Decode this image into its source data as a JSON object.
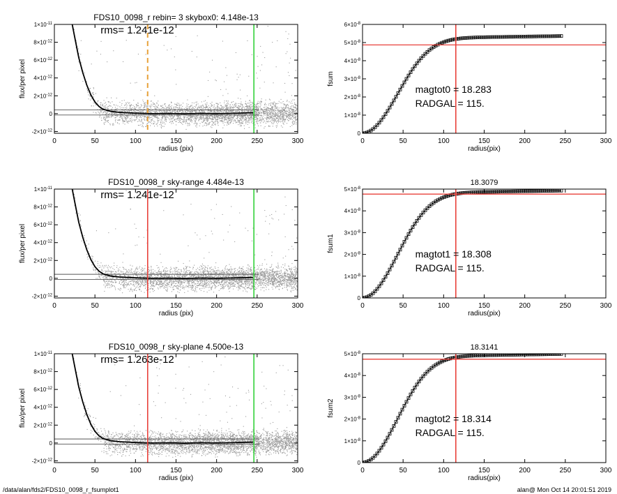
{
  "footer": {
    "left": "/data/alan/fds2/FDS10_0098_r_fsumplot1",
    "right": "alan@  Mon Oct 14 20:01:51 2019"
  },
  "colors": {
    "points": "#9a9a9a",
    "profile": "#000000",
    "red": "#e8403a",
    "green": "#34d13a",
    "orange": "#e8a23a",
    "hline": "#555555"
  },
  "chart_data": [
    {
      "type": "scatter",
      "panel": "profile-1",
      "title": "FDS10_0098_r rebin= 3    skybox0:  4.148e-13",
      "annotation": "rms= 1.241e-12",
      "xlabel": "radius (pix)",
      "ylabel": "flux/per pixel",
      "xlim": [
        0,
        300
      ],
      "ylim": [
        -2.2e-12,
        1e-11
      ],
      "xticks": [
        "0",
        "50",
        "100",
        "150",
        "200",
        "250",
        "300"
      ],
      "yticks": [
        {
          "mant": "-2×10",
          "exp": "-12"
        },
        {
          "mant": "0",
          "exp": ""
        },
        {
          "mant": "2×10",
          "exp": "-12"
        },
        {
          "mant": "4×10",
          "exp": "-12"
        },
        {
          "mant": "6×10",
          "exp": "-12"
        },
        {
          "mant": "8×10",
          "exp": "-12"
        },
        {
          "mant": "1×10",
          "exp": "-11"
        }
      ],
      "ytick_values": [
        -2e-12,
        0,
        2e-12,
        4e-12,
        6e-12,
        8e-12,
        1e-11
      ],
      "vlines": [
        {
          "x": 115,
          "style": "orange-dashed"
        },
        {
          "x": 246,
          "style": "green"
        }
      ],
      "hlines": [
        4.148e-13,
        -1.5e-13
      ],
      "profile": {
        "x": [
          22,
          25,
          30,
          35,
          40,
          45,
          50,
          55,
          60,
          70,
          80,
          90,
          100,
          120,
          140,
          160,
          180,
          200,
          220,
          245
        ],
        "y": [
          1e-11,
          8.6e-12,
          6.3e-12,
          4.6e-12,
          3.2e-12,
          2.1e-12,
          1.3e-12,
          8e-13,
          5e-13,
          2.5e-13,
          1.5e-13,
          1e-13,
          5e-14,
          0,
          2e-14,
          -2e-14,
          3e-14,
          0,
          4e-14,
          1e-13
        ]
      }
    },
    {
      "type": "line",
      "panel": "fsum-1",
      "title": "",
      "xlabel": "radius(pix)",
      "ylabel": "fsum",
      "xlim": [
        0,
        300
      ],
      "ylim": [
        0,
        6e-08
      ],
      "xticks": [
        "0",
        "50",
        "100",
        "150",
        "200",
        "250",
        "300"
      ],
      "yticks": [
        {
          "mant": "0",
          "exp": ""
        },
        {
          "mant": "1×10",
          "exp": "-8"
        },
        {
          "mant": "2×10",
          "exp": "-8"
        },
        {
          "mant": "3×10",
          "exp": "-8"
        },
        {
          "mant": "4×10",
          "exp": "-8"
        },
        {
          "mant": "5×10",
          "exp": "-8"
        },
        {
          "mant": "6×10",
          "exp": "-8"
        }
      ],
      "ytick_values": [
        0,
        1e-08,
        2e-08,
        3e-08,
        4e-08,
        5e-08,
        6e-08
      ],
      "vline_x": 115,
      "hline_y": 4.87e-08,
      "max_x": 245,
      "final_y": 5.36e-08,
      "annotations": [
        "magtot0 =  18.283",
        "RADGAL =    115."
      ]
    },
    {
      "type": "scatter",
      "panel": "profile-2",
      "title": "FDS10_0098_r sky-range  4.484e-13",
      "annotation": "rms= 1.241e-12",
      "xlabel": "radius (pix)",
      "ylabel": "flux/per pixel",
      "xlim": [
        0,
        300
      ],
      "ylim": [
        -2.2e-12,
        1e-11
      ],
      "xticks": [
        "0",
        "50",
        "100",
        "150",
        "200",
        "250",
        "300"
      ],
      "yticks": [
        {
          "mant": "-2×10",
          "exp": "-12"
        },
        {
          "mant": "0",
          "exp": ""
        },
        {
          "mant": "2×10",
          "exp": "-12"
        },
        {
          "mant": "4×10",
          "exp": "-12"
        },
        {
          "mant": "6×10",
          "exp": "-12"
        },
        {
          "mant": "8×10",
          "exp": "-12"
        },
        {
          "mant": "1×10",
          "exp": "-11"
        }
      ],
      "ytick_values": [
        -2e-12,
        0,
        2e-12,
        4e-12,
        6e-12,
        8e-12,
        1e-11
      ],
      "vlines": [
        {
          "x": 115,
          "style": "red"
        },
        {
          "x": 246,
          "style": "green"
        }
      ],
      "hlines": [
        4.484e-13,
        -1.2e-13
      ],
      "profile": {
        "x": [
          22,
          25,
          30,
          35,
          40,
          45,
          50,
          55,
          60,
          70,
          80,
          90,
          100,
          120,
          140,
          160,
          180,
          200,
          220,
          245
        ],
        "y": [
          1e-11,
          8.6e-12,
          6.3e-12,
          4.6e-12,
          3.2e-12,
          2.1e-12,
          1.3e-12,
          8e-13,
          5e-13,
          2.5e-13,
          1.5e-13,
          1e-13,
          5e-14,
          0,
          2e-14,
          -2e-14,
          3e-14,
          0,
          4e-14,
          1e-13
        ]
      }
    },
    {
      "type": "line",
      "panel": "fsum-2",
      "title": "18.3079",
      "xlabel": "radius(pix)",
      "ylabel": "fsum1",
      "xlim": [
        0,
        300
      ],
      "ylim": [
        0,
        5e-08
      ],
      "xticks": [
        "0",
        "50",
        "100",
        "150",
        "200",
        "250",
        "300"
      ],
      "yticks": [
        {
          "mant": "0",
          "exp": ""
        },
        {
          "mant": "1×10",
          "exp": "-8"
        },
        {
          "mant": "2×10",
          "exp": "-8"
        },
        {
          "mant": "3×10",
          "exp": "-8"
        },
        {
          "mant": "4×10",
          "exp": "-8"
        },
        {
          "mant": "5×10",
          "exp": "-8"
        }
      ],
      "ytick_values": [
        0,
        1e-08,
        2e-08,
        3e-08,
        4e-08,
        5e-08
      ],
      "vline_x": 115,
      "hline_y": 4.77e-08,
      "max_x": 245,
      "final_y": 4.93e-08,
      "annotations": [
        "magtot1 =  18.308",
        "RADGAL =    115."
      ]
    },
    {
      "type": "scatter",
      "panel": "profile-3",
      "title": "FDS10_0098_r sky-plane  4.500e-13",
      "annotation": "rms= 1.263e-12",
      "xlabel": "radius (pix)",
      "ylabel": "flux/per pixel",
      "xlim": [
        0,
        300
      ],
      "ylim": [
        -2.2e-12,
        1e-11
      ],
      "xticks": [
        "0",
        "50",
        "100",
        "150",
        "200",
        "250",
        "300"
      ],
      "yticks": [
        {
          "mant": "-2×10",
          "exp": "-12"
        },
        {
          "mant": "0",
          "exp": ""
        },
        {
          "mant": "2×10",
          "exp": "-12"
        },
        {
          "mant": "4×10",
          "exp": "-12"
        },
        {
          "mant": "6×10",
          "exp": "-12"
        },
        {
          "mant": "8×10",
          "exp": "-12"
        },
        {
          "mant": "1×10",
          "exp": "-11"
        }
      ],
      "ytick_values": [
        -2e-12,
        0,
        2e-12,
        4e-12,
        6e-12,
        8e-12,
        1e-11
      ],
      "vlines": [
        {
          "x": 115,
          "style": "red"
        },
        {
          "x": 246,
          "style": "green"
        }
      ],
      "hlines": [
        4.5e-13,
        -1.2e-13
      ],
      "profile": {
        "x": [
          22,
          25,
          30,
          35,
          40,
          45,
          50,
          55,
          60,
          70,
          80,
          90,
          100,
          120,
          140,
          160,
          180,
          200,
          220,
          245
        ],
        "y": [
          1e-11,
          8.6e-12,
          6.3e-12,
          4.6e-12,
          3.2e-12,
          2.1e-12,
          1.3e-12,
          8e-13,
          5e-13,
          2.5e-13,
          1.5e-13,
          1e-13,
          5e-14,
          0,
          2e-14,
          -2e-14,
          3e-14,
          0,
          4e-14,
          1e-13
        ]
      }
    },
    {
      "type": "line",
      "panel": "fsum-3",
      "title": "18.3141",
      "xlabel": "radius(pix)",
      "ylabel": "fsum2",
      "xlim": [
        0,
        300
      ],
      "ylim": [
        0,
        5e-08
      ],
      "xticks": [
        "0",
        "50",
        "100",
        "150",
        "200",
        "250",
        "300"
      ],
      "yticks": [
        {
          "mant": "0",
          "exp": ""
        },
        {
          "mant": "1×10",
          "exp": "-8"
        },
        {
          "mant": "2×10",
          "exp": "-8"
        },
        {
          "mant": "3×10",
          "exp": "-8"
        },
        {
          "mant": "4×10",
          "exp": "-8"
        },
        {
          "mant": "5×10",
          "exp": "-8"
        }
      ],
      "ytick_values": [
        0,
        1e-08,
        2e-08,
        3e-08,
        4e-08,
        5e-08
      ],
      "vline_x": 115,
      "hline_y": 4.75e-08,
      "max_x": 245,
      "final_y": 4.99e-08,
      "annotations": [
        "magtot2 =  18.314",
        "RADGAL =    115."
      ]
    }
  ]
}
